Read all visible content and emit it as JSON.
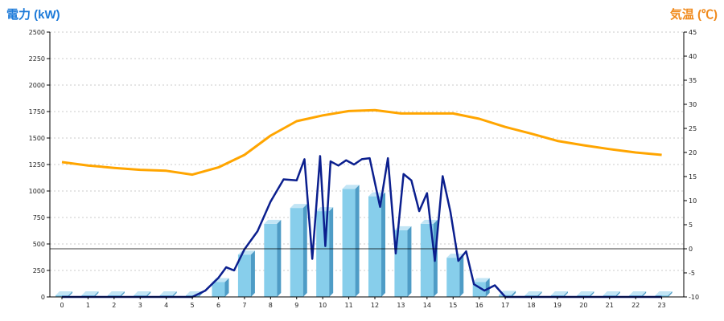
{
  "chart_data": {
    "type": "bar",
    "left_axis_title": "電力 (kW)",
    "right_axis_title": "気温 (℃)",
    "x": [
      "0",
      "1",
      "2",
      "3",
      "4",
      "5",
      "6",
      "7",
      "8",
      "9",
      "10",
      "11",
      "12",
      "13",
      "14",
      "15",
      "16",
      "17",
      "18",
      "19",
      "20",
      "21",
      "22",
      "23"
    ],
    "left_ylim": [
      0,
      2500
    ],
    "left_ticks": [
      "0",
      "250",
      "500",
      "750",
      "1000",
      "1250",
      "1500",
      "1750",
      "2000",
      "2250",
      "2500"
    ],
    "right_ylim": [
      -10,
      45
    ],
    "right_ticks": [
      "-10",
      "-5",
      "0",
      "5",
      "10",
      "15",
      "20",
      "25",
      "30",
      "35",
      "40",
      "45"
    ],
    "grid": true,
    "series": [
      {
        "kind": "bar",
        "axis": "left",
        "values": [
          0,
          0,
          0,
          0,
          0,
          0,
          140,
          400,
          690,
          840,
          810,
          1020,
          950,
          630,
          690,
          370,
          140,
          20,
          0,
          0,
          0,
          0,
          0,
          0
        ]
      },
      {
        "kind": "line",
        "axis": "left",
        "x": [
          0,
          1,
          2,
          3,
          4,
          5,
          5.5,
          6,
          6.3,
          6.6,
          7,
          7.5,
          8,
          8.5,
          9,
          9.3,
          9.6,
          9.9,
          10.1,
          10.3,
          10.6,
          10.9,
          11.2,
          11.5,
          11.8,
          12.2,
          12.5,
          12.8,
          13.1,
          13.4,
          13.7,
          14,
          14.3,
          14.6,
          14.9,
          15.2,
          15.5,
          15.8,
          16.2,
          16.6,
          17,
          18,
          19,
          20,
          21,
          22,
          23
        ],
        "values": [
          0,
          0,
          0,
          0,
          0,
          0,
          60,
          180,
          280,
          250,
          450,
          620,
          900,
          1110,
          1100,
          1300,
          360,
          1330,
          480,
          1280,
          1240,
          1290,
          1250,
          1300,
          1310,
          850,
          1310,
          410,
          1160,
          1100,
          810,
          980,
          340,
          1140,
          800,
          340,
          430,
          120,
          60,
          110,
          0,
          0,
          0,
          0,
          0,
          0,
          0
        ]
      },
      {
        "kind": "line",
        "axis": "right",
        "values": [
          18,
          17.3,
          16.8,
          16.4,
          16.2,
          15.4,
          16.9,
          19.5,
          23.5,
          26.5,
          27.7,
          28.6,
          28.8,
          28.1,
          28.1,
          28.1,
          27.0,
          25.3,
          23.9,
          22.4,
          21.5,
          20.7,
          20.0,
          19.5
        ]
      }
    ],
    "colors": {
      "bar_front": "#87CEEB",
      "bar_side": "#4E9CC6",
      "bar_top": "#C2E5F5",
      "power_line": "#0B1F8E",
      "temp_line": "#FFA500",
      "left_title": "#1E7BD9",
      "right_title": "#F08A1C",
      "grid": "#BBBBBB"
    }
  }
}
